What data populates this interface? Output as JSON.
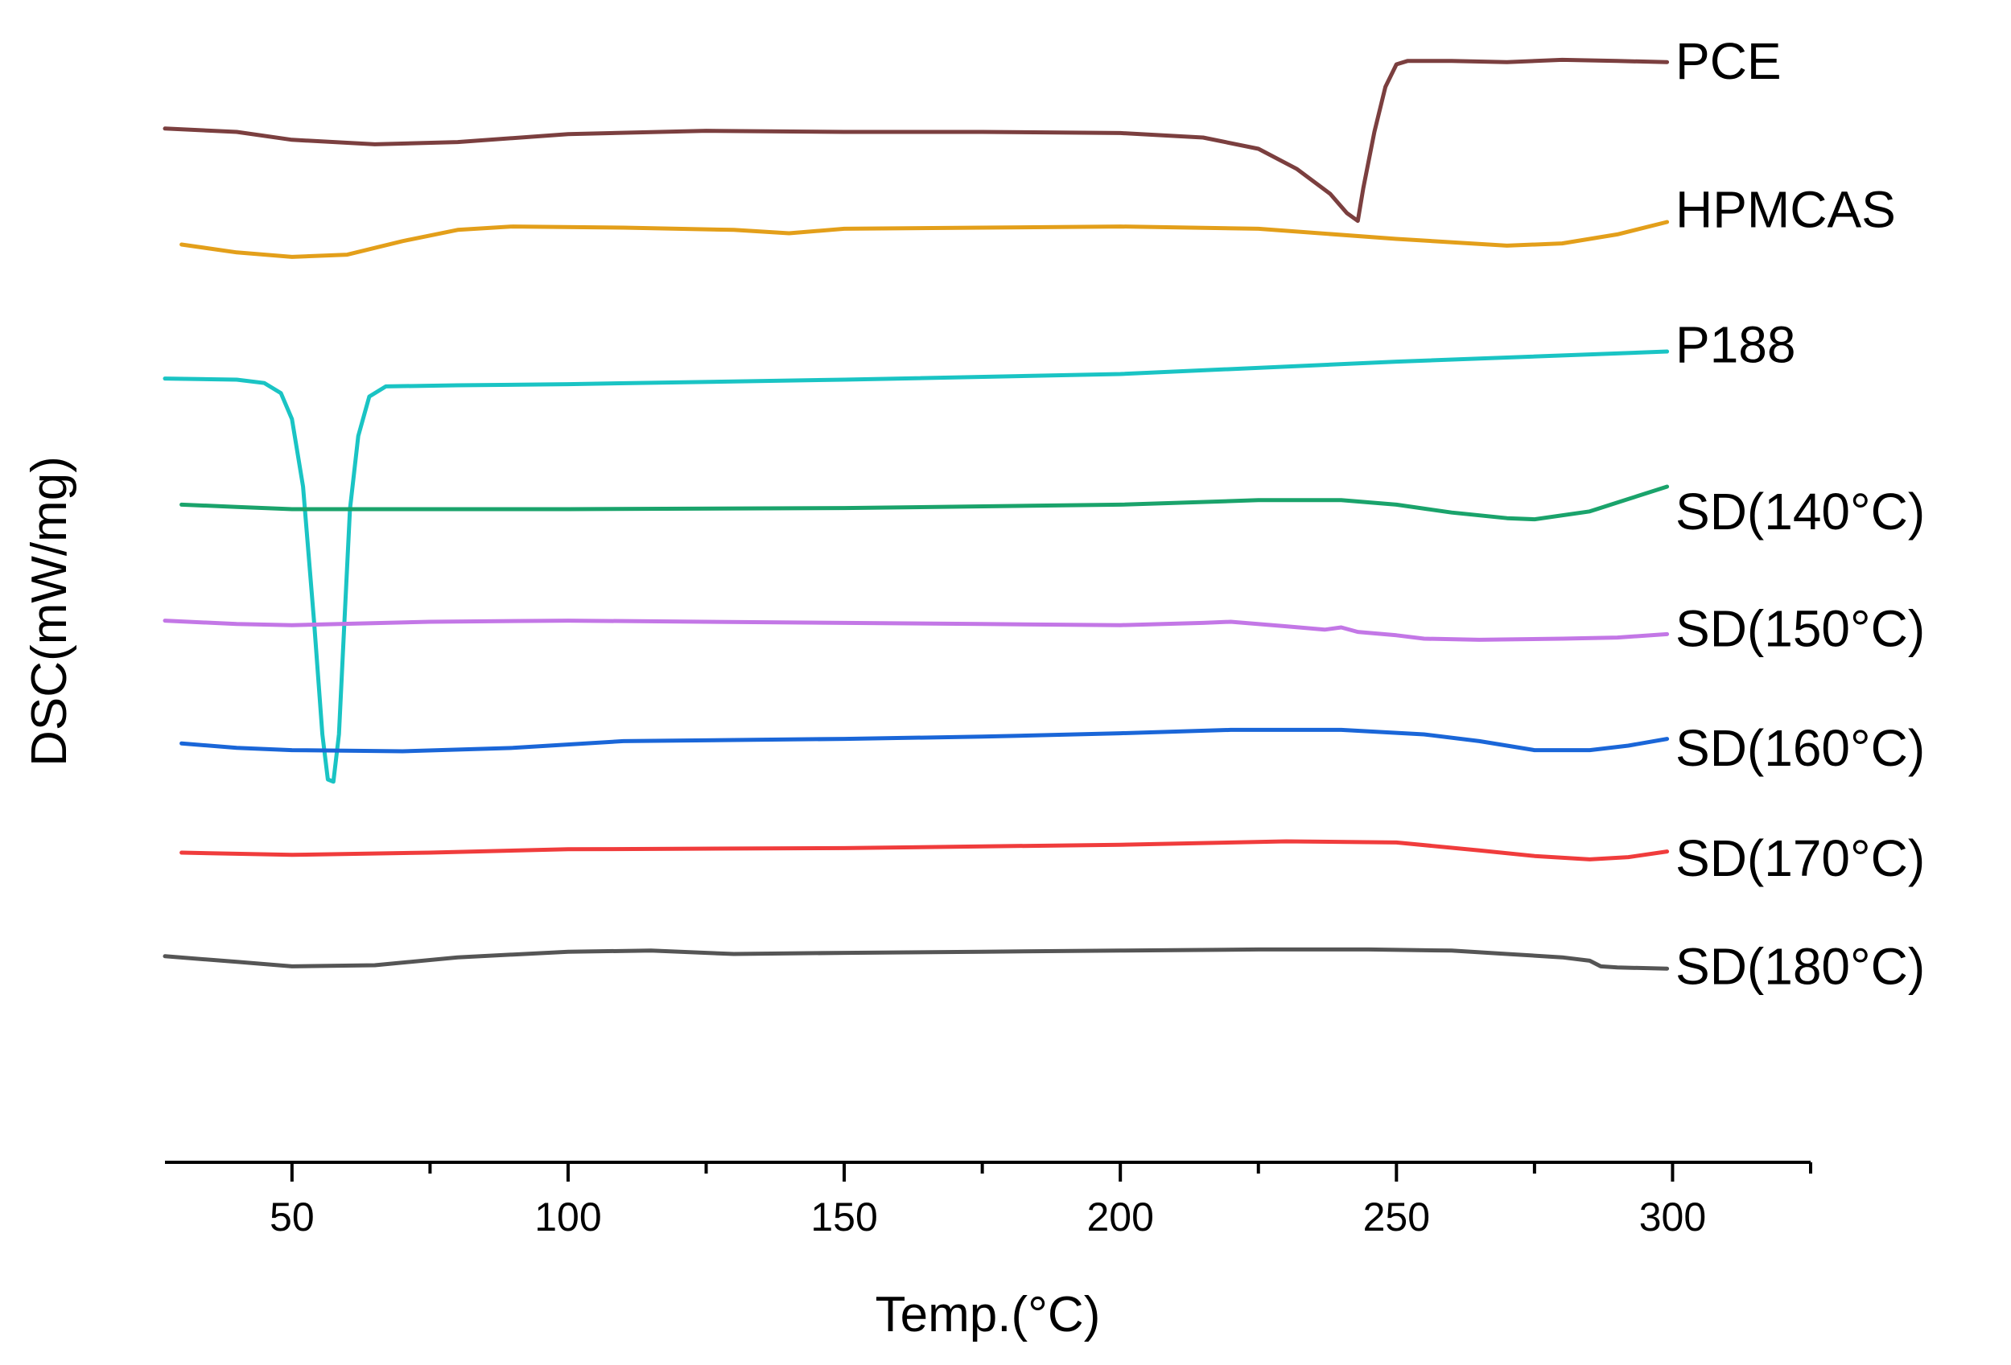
{
  "chart_data": {
    "type": "line",
    "title": "",
    "xlabel": "Temp.(°C)",
    "ylabel": "DSC(mW/mg)",
    "xlim": [
      27,
      325
    ],
    "ylim": [
      0,
      100
    ],
    "xticks": [
      50,
      100,
      150,
      200,
      250,
      300
    ],
    "grid": false,
    "legend": "inline labels at right end of each curve",
    "series": [
      {
        "name": "PCE",
        "label": "PCE",
        "color": "#7b3f3f",
        "label_y": 97.8,
        "points": [
          [
            27,
            91.8
          ],
          [
            40,
            91.5
          ],
          [
            50,
            90.8
          ],
          [
            65,
            90.4
          ],
          [
            80,
            90.6
          ],
          [
            100,
            91.3
          ],
          [
            125,
            91.6
          ],
          [
            150,
            91.5
          ],
          [
            175,
            91.5
          ],
          [
            200,
            91.4
          ],
          [
            215,
            91.0
          ],
          [
            225,
            90.0
          ],
          [
            232,
            88.2
          ],
          [
            238,
            86.0
          ],
          [
            241,
            84.3
          ],
          [
            243,
            83.6
          ],
          [
            244,
            86.5
          ],
          [
            246,
            91.5
          ],
          [
            248,
            95.5
          ],
          [
            250,
            97.5
          ],
          [
            252,
            97.8
          ],
          [
            260,
            97.8
          ],
          [
            270,
            97.7
          ],
          [
            280,
            97.9
          ],
          [
            290,
            97.8
          ],
          [
            299,
            97.7
          ]
        ]
      },
      {
        "name": "HPMCAS",
        "label": "HPMCAS",
        "color": "#e39f1a",
        "label_y": 84.6,
        "points": [
          [
            30,
            81.5
          ],
          [
            40,
            80.8
          ],
          [
            50,
            80.4
          ],
          [
            60,
            80.6
          ],
          [
            70,
            81.8
          ],
          [
            80,
            82.8
          ],
          [
            90,
            83.1
          ],
          [
            110,
            83.0
          ],
          [
            130,
            82.8
          ],
          [
            140,
            82.5
          ],
          [
            150,
            82.9
          ],
          [
            175,
            83.0
          ],
          [
            200,
            83.1
          ],
          [
            225,
            82.9
          ],
          [
            250,
            82.0
          ],
          [
            270,
            81.4
          ],
          [
            280,
            81.6
          ],
          [
            290,
            82.4
          ],
          [
            299,
            83.5
          ]
        ]
      },
      {
        "name": "P188",
        "label": "P188",
        "color": "#1ac4c4",
        "label_y": 72.6,
        "points": [
          [
            27,
            69.6
          ],
          [
            40,
            69.5
          ],
          [
            45,
            69.2
          ],
          [
            48,
            68.3
          ],
          [
            50,
            66.0
          ],
          [
            52,
            60.0
          ],
          [
            54,
            48.0
          ],
          [
            55.5,
            38.0
          ],
          [
            56.5,
            34.0
          ],
          [
            57.5,
            33.8
          ],
          [
            58.5,
            38.0
          ],
          [
            59.5,
            48.0
          ],
          [
            60.5,
            58.0
          ],
          [
            62,
            64.5
          ],
          [
            64,
            68.0
          ],
          [
            67,
            68.9
          ],
          [
            80,
            69.0
          ],
          [
            100,
            69.1
          ],
          [
            150,
            69.5
          ],
          [
            200,
            70.0
          ],
          [
            250,
            71.1
          ],
          [
            299,
            72.0
          ]
        ]
      },
      {
        "name": "SD(140°C)",
        "label": "SD(140°C)",
        "color": "#1aa36b",
        "label_y": 57.8,
        "points": [
          [
            30,
            58.4
          ],
          [
            40,
            58.2
          ],
          [
            50,
            58.0
          ],
          [
            75,
            58.0
          ],
          [
            100,
            58.0
          ],
          [
            150,
            58.1
          ],
          [
            200,
            58.4
          ],
          [
            225,
            58.8
          ],
          [
            240,
            58.8
          ],
          [
            250,
            58.4
          ],
          [
            260,
            57.7
          ],
          [
            270,
            57.2
          ],
          [
            275,
            57.1
          ],
          [
            285,
            57.8
          ],
          [
            292,
            58.9
          ],
          [
            299,
            60.0
          ]
        ]
      },
      {
        "name": "SD(150°C)",
        "label": "SD(150°C)",
        "color": "#c377e6",
        "label_y": 47.4,
        "points": [
          [
            27,
            48.1
          ],
          [
            40,
            47.8
          ],
          [
            50,
            47.7
          ],
          [
            75,
            48.0
          ],
          [
            100,
            48.1
          ],
          [
            150,
            47.9
          ],
          [
            175,
            47.8
          ],
          [
            200,
            47.7
          ],
          [
            215,
            47.9
          ],
          [
            220,
            48.0
          ],
          [
            230,
            47.6
          ],
          [
            237,
            47.3
          ],
          [
            240,
            47.5
          ],
          [
            243,
            47.1
          ],
          [
            250,
            46.8
          ],
          [
            255,
            46.5
          ],
          [
            265,
            46.4
          ],
          [
            280,
            46.5
          ],
          [
            290,
            46.6
          ],
          [
            299,
            46.9
          ]
        ]
      },
      {
        "name": "SD(160°C)",
        "label": "SD(160°C)",
        "color": "#1a66d8",
        "label_y": 36.8,
        "points": [
          [
            30,
            37.2
          ],
          [
            40,
            36.8
          ],
          [
            50,
            36.6
          ],
          [
            70,
            36.5
          ],
          [
            90,
            36.8
          ],
          [
            110,
            37.4
          ],
          [
            130,
            37.5
          ],
          [
            150,
            37.6
          ],
          [
            175,
            37.8
          ],
          [
            200,
            38.1
          ],
          [
            220,
            38.4
          ],
          [
            240,
            38.4
          ],
          [
            255,
            38.0
          ],
          [
            265,
            37.4
          ],
          [
            275,
            36.6
          ],
          [
            285,
            36.6
          ],
          [
            292,
            37.0
          ],
          [
            299,
            37.6
          ]
        ]
      },
      {
        "name": "SD(170°C)",
        "label": "SD(170°C)",
        "color": "#f03c3c",
        "label_y": 27.0,
        "points": [
          [
            30,
            27.5
          ],
          [
            50,
            27.3
          ],
          [
            75,
            27.5
          ],
          [
            100,
            27.8
          ],
          [
            150,
            27.9
          ],
          [
            200,
            28.2
          ],
          [
            230,
            28.5
          ],
          [
            250,
            28.4
          ],
          [
            265,
            27.7
          ],
          [
            275,
            27.2
          ],
          [
            285,
            26.9
          ],
          [
            292,
            27.1
          ],
          [
            299,
            27.6
          ]
        ]
      },
      {
        "name": "SD(180°C)",
        "label": "SD(180°C)",
        "color": "#555555",
        "label_y": 17.4,
        "points": [
          [
            27,
            18.3
          ],
          [
            40,
            17.8
          ],
          [
            50,
            17.4
          ],
          [
            65,
            17.5
          ],
          [
            80,
            18.2
          ],
          [
            100,
            18.7
          ],
          [
            115,
            18.8
          ],
          [
            130,
            18.5
          ],
          [
            150,
            18.6
          ],
          [
            175,
            18.7
          ],
          [
            200,
            18.8
          ],
          [
            225,
            18.9
          ],
          [
            245,
            18.9
          ],
          [
            260,
            18.8
          ],
          [
            270,
            18.5
          ],
          [
            280,
            18.2
          ],
          [
            285,
            17.9
          ],
          [
            287,
            17.4
          ],
          [
            290,
            17.3
          ],
          [
            299,
            17.2
          ]
        ]
      }
    ]
  }
}
